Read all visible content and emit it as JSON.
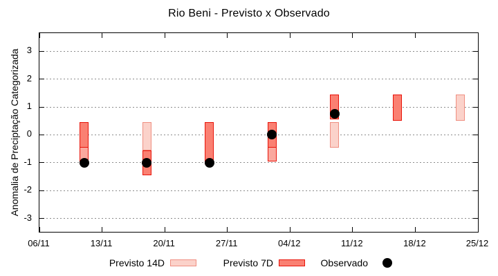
{
  "chart_data": {
    "type": "range-bar+scatter",
    "title": "Rio Beni - Previsto x Observado",
    "ylabel": "Anomalia de Preciptação Categorizada",
    "xlabel": "",
    "xticks": [
      "06/11",
      "13/11",
      "20/11",
      "27/11",
      "04/12",
      "11/12",
      "18/12",
      "25/12"
    ],
    "xtick_days": [
      0,
      7,
      14,
      21,
      28,
      35,
      42,
      49
    ],
    "x_span_days": 49,
    "yticks": [
      3,
      2,
      1,
      0,
      -1,
      -2,
      -3
    ],
    "ylim": [
      -3.48,
      3.65
    ],
    "grid": "dotted horizontal gridline at every integer y tick",
    "colors": {
      "dark_fill": "#fa8072",
      "dark_border": "#e81309",
      "light_fill": "#fbd2ca",
      "light_border": "#ef8e80",
      "overlap_fill": "#faa89e",
      "overlap_border": "#e81309",
      "dot": "#000000",
      "grid": "#8a8a8a",
      "axis": "#000000"
    },
    "bars": [
      {
        "date": "11/11",
        "day": 5,
        "observado": -1.0,
        "segments": [
          {
            "series": "Previsto 14D",
            "style": "overlap",
            "lo": -1.05,
            "hi": 0.45
          },
          {
            "series": "Previsto 7D",
            "style": "dark",
            "lo": -0.45,
            "hi": 0.45
          }
        ]
      },
      {
        "date": "18/11",
        "day": 12,
        "observado": -1.0,
        "segments": [
          {
            "series": "Previsto 14D",
            "style": "light",
            "lo": -0.55,
            "hi": 0.45
          },
          {
            "series": "Previsto 7D",
            "style": "dark",
            "lo": -1.45,
            "hi": -0.55
          }
        ]
      },
      {
        "date": "25/11",
        "day": 19,
        "observado": -1.0,
        "segments": [
          {
            "series": "Previsto 7D",
            "style": "dark",
            "lo": -1.05,
            "hi": 0.45
          }
        ]
      },
      {
        "date": "02/12",
        "day": 26,
        "observado": 0.0,
        "segments": [
          {
            "series": "Previsto 14D",
            "style": "overlap",
            "lo": -0.95,
            "hi": 0.45
          },
          {
            "series": "Previsto 7D",
            "style": "dark",
            "lo": -0.45,
            "hi": 0.45
          }
        ]
      },
      {
        "date": "09/12",
        "day": 33,
        "observado": 0.75,
        "segments": [
          {
            "series": "Previsto 7D",
            "style": "dark",
            "lo": 0.55,
            "hi": 1.45
          },
          {
            "series": "Previsto 14D",
            "style": "light",
            "lo": -0.45,
            "hi": 0.45
          }
        ]
      },
      {
        "date": "16/12",
        "day": 40,
        "observado": null,
        "segments": [
          {
            "series": "Previsto 7D",
            "style": "dark",
            "lo": 0.5,
            "hi": 1.45
          }
        ]
      },
      {
        "date": "23/12",
        "day": 47,
        "observado": null,
        "segments": [
          {
            "series": "Previsto 14D",
            "style": "light",
            "lo": 0.5,
            "hi": 1.45
          }
        ]
      }
    ],
    "legend": {
      "position": "bottom",
      "entries": [
        {
          "label": "Previsto 14D",
          "swatch": "light"
        },
        {
          "label": "Previsto 7D",
          "swatch": "dark"
        },
        {
          "label": "Observado",
          "swatch": "dot"
        }
      ]
    }
  }
}
